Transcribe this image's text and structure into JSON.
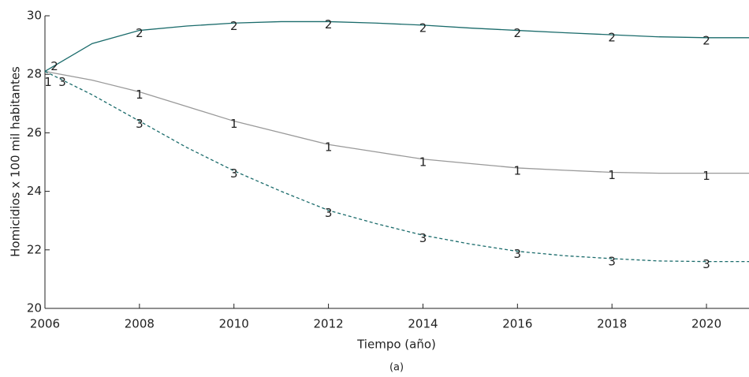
{
  "chart_data": {
    "type": "line",
    "x_label": "Tiempo (año)",
    "y_label": "Homicidios x 100 mil habitantes",
    "caption": "(a)",
    "x": [
      2006,
      2007,
      2008,
      2009,
      2010,
      2011,
      2012,
      2013,
      2014,
      2015,
      2016,
      2017,
      2018,
      2019,
      2020,
      2020.9
    ],
    "series": [
      {
        "name": "1",
        "color": "#999999",
        "dashed": false,
        "values": [
          28.1,
          27.8,
          27.4,
          26.9,
          26.4,
          26.0,
          25.6,
          25.35,
          25.1,
          24.95,
          24.8,
          24.72,
          24.65,
          24.62,
          24.62,
          24.62
        ]
      },
      {
        "name": "2",
        "color": "#1a6b6b",
        "dashed": false,
        "values": [
          28.1,
          29.05,
          29.5,
          29.65,
          29.75,
          29.8,
          29.8,
          29.75,
          29.68,
          29.58,
          29.5,
          29.42,
          29.35,
          29.28,
          29.25,
          29.25
        ]
      },
      {
        "name": "3",
        "color": "#1a6b6b",
        "dashed": true,
        "values": [
          28.1,
          27.3,
          26.4,
          25.5,
          24.7,
          24.0,
          23.35,
          22.9,
          22.5,
          22.2,
          21.95,
          21.8,
          21.7,
          21.62,
          21.6,
          21.6
        ]
      }
    ],
    "xlim": [
      2006,
      2020.9
    ],
    "xticks": [
      2006,
      2008,
      2010,
      2012,
      2014,
      2016,
      2018,
      2020
    ],
    "ylim": [
      20,
      30
    ],
    "yticks": [
      20,
      22,
      24,
      26,
      28,
      30
    ],
    "grid": false
  }
}
